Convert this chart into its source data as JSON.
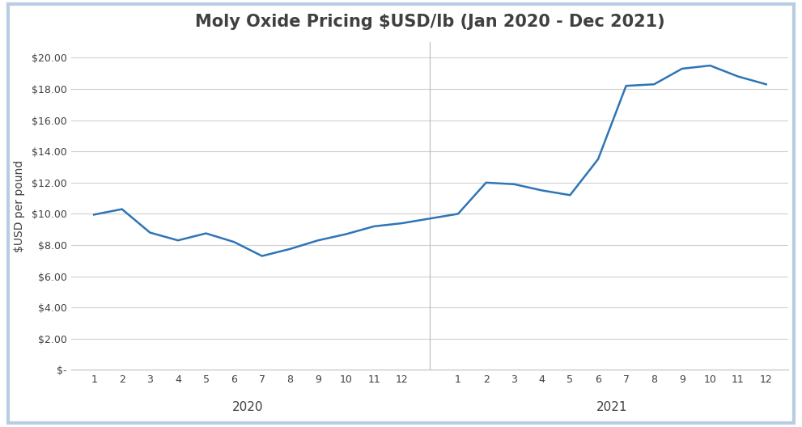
{
  "title": "Moly Oxide Pricing $USD/lb (Jan 2020 - Dec 2021)",
  "ylabel": "$USD per pound",
  "xlabel_2020": "2020",
  "xlabel_2021": "2021",
  "vals_2020": [
    9.95,
    10.3,
    8.8,
    8.3,
    8.75,
    8.2,
    7.3,
    7.75,
    8.3,
    8.7,
    9.2,
    9.4
  ],
  "vals_2021": [
    10.0,
    12.0,
    11.9,
    11.5,
    11.2,
    13.5,
    18.2,
    18.3,
    19.3,
    19.5,
    18.8,
    18.3
  ],
  "line_color": "#2E75B6",
  "line_width": 1.8,
  "background_color": "#FFFFFF",
  "plot_bg_color": "#FFFFFF",
  "grid_color": "#D0D0D0",
  "title_fontsize": 15,
  "axis_label_fontsize": 10,
  "tick_fontsize": 9,
  "year_label_fontsize": 11,
  "ylim": [
    0,
    21
  ],
  "yticks": [
    0,
    2,
    4,
    6,
    8,
    10,
    12,
    14,
    16,
    18,
    20
  ],
  "ytick_labels": [
    "$-",
    "$2.00",
    "$4.00",
    "$6.00",
    "$8.00",
    "$10.00",
    "$12.00",
    "$14.00",
    "$16.00",
    "$18.00",
    "$20.00"
  ],
  "outer_border_color": "#B8CCE4",
  "outer_border_linewidth": 3,
  "separator_color": "#C0C0C0",
  "spine_color": "#C0C0C0"
}
